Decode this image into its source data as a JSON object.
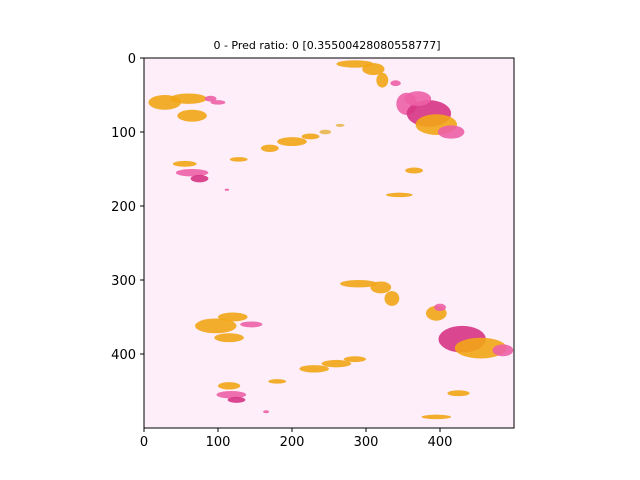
{
  "chart_data": {
    "type": "heatmap",
    "title": "0 - Pred ratio: 0 [0.35500428080558777]",
    "xlabel": "",
    "ylabel": "",
    "xlim": [
      0,
      500
    ],
    "ylim": [
      500,
      0
    ],
    "x_ticks": [
      0,
      100,
      200,
      300,
      400
    ],
    "y_ticks": [
      0,
      100,
      200,
      300,
      400
    ],
    "grid": false,
    "colors": {
      "background": "#fdeefa",
      "orange": "#f2a516",
      "pink": "#ec5fa6",
      "magenta": "#d63384",
      "gold": "#e8b64c"
    },
    "regions": [
      {
        "cx": 28,
        "cy": 60,
        "rx": 22,
        "ry": 10,
        "color": "orange"
      },
      {
        "cx": 60,
        "cy": 55,
        "rx": 25,
        "ry": 7,
        "color": "orange"
      },
      {
        "cx": 65,
        "cy": 78,
        "rx": 20,
        "ry": 8,
        "color": "orange"
      },
      {
        "cx": 90,
        "cy": 55,
        "rx": 8,
        "ry": 4,
        "color": "pink"
      },
      {
        "cx": 100,
        "cy": 60,
        "rx": 10,
        "ry": 3,
        "color": "pink"
      },
      {
        "cx": 55,
        "cy": 143,
        "rx": 16,
        "ry": 4,
        "color": "orange"
      },
      {
        "cx": 65,
        "cy": 155,
        "rx": 22,
        "ry": 5,
        "color": "pink"
      },
      {
        "cx": 75,
        "cy": 163,
        "rx": 12,
        "ry": 5,
        "color": "magenta"
      },
      {
        "cx": 128,
        "cy": 137,
        "rx": 12,
        "ry": 3,
        "color": "orange"
      },
      {
        "cx": 112,
        "cy": 178,
        "rx": 3,
        "ry": 1.5,
        "color": "pink"
      },
      {
        "cx": 170,
        "cy": 122,
        "rx": 12,
        "ry": 5,
        "color": "orange"
      },
      {
        "cx": 200,
        "cy": 113,
        "rx": 20,
        "ry": 6,
        "color": "orange"
      },
      {
        "cx": 225,
        "cy": 106,
        "rx": 12,
        "ry": 4,
        "color": "orange"
      },
      {
        "cx": 245,
        "cy": 100,
        "rx": 8,
        "ry": 3,
        "color": "gold"
      },
      {
        "cx": 265,
        "cy": 91,
        "rx": 6,
        "ry": 2,
        "color": "gold"
      },
      {
        "cx": 285,
        "cy": 8,
        "rx": 25,
        "ry": 5,
        "color": "orange"
      },
      {
        "cx": 310,
        "cy": 15,
        "rx": 15,
        "ry": 8,
        "color": "orange"
      },
      {
        "cx": 322,
        "cy": 30,
        "rx": 8,
        "ry": 10,
        "color": "orange"
      },
      {
        "cx": 340,
        "cy": 34,
        "rx": 7,
        "ry": 4,
        "color": "pink"
      },
      {
        "cx": 355,
        "cy": 62,
        "rx": 14,
        "ry": 15,
        "color": "pink"
      },
      {
        "cx": 385,
        "cy": 75,
        "rx": 30,
        "ry": 18,
        "color": "magenta"
      },
      {
        "cx": 395,
        "cy": 90,
        "rx": 28,
        "ry": 14,
        "color": "orange"
      },
      {
        "cx": 415,
        "cy": 100,
        "rx": 18,
        "ry": 9,
        "color": "pink"
      },
      {
        "cx": 370,
        "cy": 55,
        "rx": 18,
        "ry": 10,
        "color": "pink"
      },
      {
        "cx": 365,
        "cy": 152,
        "rx": 12,
        "ry": 4,
        "color": "orange"
      },
      {
        "cx": 345,
        "cy": 185,
        "rx": 18,
        "ry": 3,
        "color": "orange"
      },
      {
        "cx": 290,
        "cy": 305,
        "rx": 25,
        "ry": 5,
        "color": "orange"
      },
      {
        "cx": 320,
        "cy": 310,
        "rx": 14,
        "ry": 8,
        "color": "orange"
      },
      {
        "cx": 335,
        "cy": 325,
        "rx": 10,
        "ry": 10,
        "color": "orange"
      },
      {
        "cx": 97,
        "cy": 362,
        "rx": 28,
        "ry": 10,
        "color": "orange"
      },
      {
        "cx": 120,
        "cy": 350,
        "rx": 20,
        "ry": 6,
        "color": "orange"
      },
      {
        "cx": 115,
        "cy": 378,
        "rx": 20,
        "ry": 6,
        "color": "orange"
      },
      {
        "cx": 145,
        "cy": 360,
        "rx": 15,
        "ry": 4,
        "color": "pink"
      },
      {
        "cx": 395,
        "cy": 345,
        "rx": 14,
        "ry": 10,
        "color": "orange"
      },
      {
        "cx": 400,
        "cy": 337,
        "rx": 8,
        "ry": 5,
        "color": "pink"
      },
      {
        "cx": 430,
        "cy": 380,
        "rx": 32,
        "ry": 18,
        "color": "magenta"
      },
      {
        "cx": 455,
        "cy": 392,
        "rx": 35,
        "ry": 14,
        "color": "orange"
      },
      {
        "cx": 485,
        "cy": 395,
        "rx": 14,
        "ry": 8,
        "color": "pink"
      },
      {
        "cx": 230,
        "cy": 420,
        "rx": 20,
        "ry": 5,
        "color": "orange"
      },
      {
        "cx": 260,
        "cy": 413,
        "rx": 20,
        "ry": 5,
        "color": "orange"
      },
      {
        "cx": 285,
        "cy": 407,
        "rx": 15,
        "ry": 4,
        "color": "orange"
      },
      {
        "cx": 115,
        "cy": 443,
        "rx": 15,
        "ry": 5,
        "color": "orange"
      },
      {
        "cx": 118,
        "cy": 455,
        "rx": 20,
        "ry": 5,
        "color": "pink"
      },
      {
        "cx": 125,
        "cy": 462,
        "rx": 12,
        "ry": 4,
        "color": "magenta"
      },
      {
        "cx": 180,
        "cy": 437,
        "rx": 12,
        "ry": 3,
        "color": "orange"
      },
      {
        "cx": 425,
        "cy": 453,
        "rx": 15,
        "ry": 4,
        "color": "orange"
      },
      {
        "cx": 395,
        "cy": 485,
        "rx": 20,
        "ry": 3,
        "color": "orange"
      },
      {
        "cx": 165,
        "cy": 478,
        "rx": 4,
        "ry": 2,
        "color": "pink"
      }
    ]
  }
}
